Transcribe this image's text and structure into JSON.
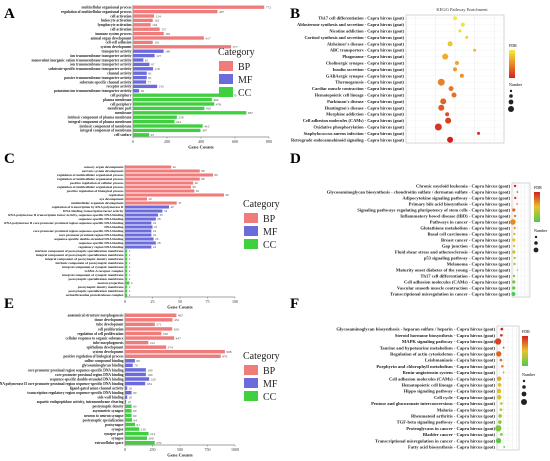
{
  "category_legend": {
    "title": "Category",
    "entries": [
      {
        "label": "BP",
        "color": "#f07b7b"
      },
      {
        "label": "MF",
        "color": "#6b6bdb"
      },
      {
        "label": "CC",
        "color": "#3fcf3f"
      }
    ]
  },
  "kegg_legends": {
    "b": {
      "title": "KEGG Pathway Enrichment",
      "color_title": "FDR",
      "size_title": "Number"
    },
    "d": {
      "color_title": "FDR",
      "size_title": "Number"
    },
    "f": {
      "color_title": "FDR",
      "size_title": "Number"
    }
  },
  "chart_data": [
    {
      "panel": "A",
      "type": "bar",
      "orientation": "horizontal",
      "xlabel": "Gene Counts",
      "xlim": [
        0,
        800
      ],
      "xticks": [
        0,
        200,
        400,
        600,
        800
      ],
      "bars": [
        {
          "label": "multicellular organismal process",
          "value": 772,
          "category": "BP"
        },
        {
          "label": "regulation of multicellular organismal process",
          "value": 497,
          "category": "BP"
        },
        {
          "label": "cell activation",
          "value": 124,
          "category": "BP"
        },
        {
          "label": "leukocyte activation",
          "value": 116,
          "category": "BP"
        },
        {
          "label": "lymphocyte activation",
          "value": 104,
          "category": "BP"
        },
        {
          "label": "cell activation",
          "value": 157,
          "category": "BP"
        },
        {
          "label": "immune system process",
          "value": 181,
          "category": "BP"
        },
        {
          "label": "animal organ development",
          "value": 417,
          "category": "BP"
        },
        {
          "label": "cell-cell adhesion",
          "value": 116,
          "category": "BP"
        },
        {
          "label": "system development",
          "value": 577,
          "category": "BP"
        },
        {
          "label": "transporter activity",
          "value": 180,
          "category": "MF"
        },
        {
          "label": "ion transmembrane transporter activity",
          "value": 127,
          "category": "MF"
        },
        {
          "label": "monovalent inorganic cation transmembrane transporter activity",
          "value": 61,
          "category": "MF"
        },
        {
          "label": "ion transmembrane transporter activity",
          "value": 97,
          "category": "MF"
        },
        {
          "label": "substrate-specific transmembrane transporter activity",
          "value": 118,
          "category": "MF"
        },
        {
          "label": "channel activity",
          "value": 81,
          "category": "MF"
        },
        {
          "label": "passive transmembrane transporter activity",
          "value": 81,
          "category": "MF"
        },
        {
          "label": "substrate-specific channel activity",
          "value": 77,
          "category": "MF"
        },
        {
          "label": "receptor activity",
          "value": 142,
          "category": "MF"
        },
        {
          "label": "potassium ion transmembrane transporter activity",
          "value": 36,
          "category": "MF"
        },
        {
          "label": "cell periphery",
          "value": 570,
          "category": "CC"
        },
        {
          "label": "plasma membrane",
          "value": 464,
          "category": "CC"
        },
        {
          "label": "cell periphery",
          "value": 478,
          "category": "CC"
        },
        {
          "label": "membrane part",
          "value": 420,
          "category": "CC"
        },
        {
          "label": "membrane",
          "value": 667,
          "category": "CC"
        },
        {
          "label": "intrinsic component of plasma membrane",
          "value": 258,
          "category": "CC"
        },
        {
          "label": "integral component of plasma membrane",
          "value": 244,
          "category": "CC"
        },
        {
          "label": "intrinsic component of membrane",
          "value": 410,
          "category": "CC"
        },
        {
          "label": "integral component of membrane",
          "value": 397,
          "category": "CC"
        },
        {
          "label": "cell surface",
          "value": 95,
          "category": "CC"
        }
      ]
    },
    {
      "panel": "B",
      "type": "scatter",
      "title": "KEGG Pathway Enrichment",
      "categories": [
        "Th17 cell differentiation - Capra hircus (goat)",
        "Aldosterone synthesis and secretion - Capra hircus (goat)",
        "Nicotine addiction - Capra hircus (goat)",
        "Cortisol synthesis and secretion - Capra hircus (goat)",
        "Alzheimer's disease - Capra hircus (goat)",
        "ABC transporters - Capra hircus (goat)",
        "Phagosome - Capra hircus (goat)",
        "Cholinergic synapse - Capra hircus (goat)",
        "Insulin secretion - Capra hircus (goat)",
        "GABAergic synapse - Capra hircus (goat)",
        "Thermogenesis - Capra hircus (goat)",
        "Cardiac muscle contraction - Capra hircus (goat)",
        "Hematopoietic cell lineage - Capra hircus (goat)",
        "Parkinson's disease - Capra hircus (goat)",
        "Huntington's disease - Capra hircus (goat)",
        "Morphine addiction - Capra hircus (goat)",
        "Cell adhesion molecules (CAMs) - Capra hircus (goat)",
        "Oxidative phosphorylation - Capra hircus (goat)",
        "Staphylococcus aureus infection - Capra hircus (goat)",
        "Retrograde endocannabinoid signaling - Capra hircus (goat)"
      ],
      "x": [
        0.5,
        0.58,
        0.55,
        0.62,
        0.45,
        0.7,
        0.4,
        0.52,
        0.5,
        0.57,
        0.36,
        0.46,
        0.49,
        0.38,
        0.36,
        0.42,
        0.43,
        0.33,
        0.74,
        0.45
      ],
      "sizes": [
        4,
        4,
        3,
        3,
        5,
        3,
        6,
        4,
        4,
        4,
        7,
        5,
        5,
        6,
        6,
        4,
        6,
        7,
        3,
        6
      ]
    },
    {
      "panel": "C",
      "type": "bar",
      "orientation": "horizontal",
      "xlabel": "Gene Counts",
      "xlim": [
        0,
        100
      ],
      "xticks": [
        0,
        25,
        50,
        75,
        100
      ],
      "bars": [
        {
          "label": "sensory organ development",
          "value": 42,
          "category": "BP"
        },
        {
          "label": "nervous system development",
          "value": 68,
          "category": "BP"
        },
        {
          "label": "regulation of multicellular organismal process",
          "value": 80,
          "category": "BP"
        },
        {
          "label": "regulation of multicellular organismal process",
          "value": 68,
          "category": "BP"
        },
        {
          "label": "positive regulation of cellular process",
          "value": 62,
          "category": "BP"
        },
        {
          "label": "regulation of multicellular organismal process",
          "value": 60,
          "category": "BP"
        },
        {
          "label": "positive regulation of biological process",
          "value": 63,
          "category": "BP"
        },
        {
          "label": "regulation",
          "value": 90,
          "category": "BP"
        },
        {
          "label": "eye development",
          "value": 20,
          "category": "BP"
        },
        {
          "label": "multicellular organism development",
          "value": 47,
          "category": "BP"
        },
        {
          "label": "regulation of transcription by RNA polymerase II",
          "value": 40,
          "category": "MF"
        },
        {
          "label": "DNA-binding transcription factor activity",
          "value": 34,
          "category": "MF"
        },
        {
          "label": "RNA polymerase II transcription factor activity, sequence-specific DNA binding",
          "value": 30,
          "category": "MF"
        },
        {
          "label": "sequence-specific DNA binding",
          "value": 28,
          "category": "MF"
        },
        {
          "label": "RNA polymerase II core promoter proximal region sequence-specific DNA binding",
          "value": 24,
          "category": "MF"
        },
        {
          "label": "DNA binding",
          "value": 25,
          "category": "MF"
        },
        {
          "label": "core promoter proximal region sequence-specific DNA binding",
          "value": 24,
          "category": "MF"
        },
        {
          "label": "core promoter proximal region DNA binding",
          "value": 24,
          "category": "MF"
        },
        {
          "label": "sequence-specific double-stranded DNA binding",
          "value": 26,
          "category": "MF"
        },
        {
          "label": "sequence-specific DNA binding",
          "value": 28,
          "category": "MF"
        },
        {
          "label": "regulatory region DNA binding",
          "value": 24,
          "category": "MF"
        },
        {
          "label": "intrinsic component of postsynaptic specialization membrane",
          "value": 2,
          "category": "CC"
        },
        {
          "label": "integral component of postsynaptic specialization membrane",
          "value": 2,
          "category": "CC"
        },
        {
          "label": "integral component of postsynaptic density membrane",
          "value": 2,
          "category": "CC"
        },
        {
          "label": "intrinsic component of postsynaptic membrane",
          "value": 2,
          "category": "CC"
        },
        {
          "label": "integral component of synaptic membrane",
          "value": 2,
          "category": "CC"
        },
        {
          "label": "GABA-A receptor complex",
          "value": 2,
          "category": "CC"
        },
        {
          "label": "integral component of synaptic membrane",
          "value": 2,
          "category": "CC"
        },
        {
          "label": "postsynaptic specialization membrane",
          "value": 2,
          "category": "CC"
        },
        {
          "label": "neuron projection",
          "value": 4,
          "category": "CC"
        },
        {
          "label": "postsynaptic density membrane",
          "value": 2,
          "category": "CC"
        },
        {
          "label": "postsynaptic specialization membrane",
          "value": 2,
          "category": "CC"
        },
        {
          "label": "serine/threonine protein kinase complex",
          "value": 2,
          "category": "CC"
        }
      ]
    },
    {
      "panel": "D",
      "type": "scatter",
      "categories": [
        "Chronic myeloid leukemia - Capra hircus (goat)",
        "Glycosaminoglycan biosynthesis - chondroitin sulfate / dermatan sulfate - Capra hircus (goat)",
        "Adipocytokine signaling pathway - Capra hircus (goat)",
        "Primary bile acid biosynthesis - Capra hircus (goat)",
        "Signaling pathways regulating pluripotency of stem cells - Capra hircus (goat)",
        "Inflammatory bowel disease (IBD) - Capra hircus (goat)",
        "Pathways in cancer - Capra hircus (goat)",
        "Glutathione metabolism - Capra hircus (goat)",
        "Basal cell carcinoma - Capra hircus (goat)",
        "Breast cancer - Capra hircus (goat)",
        "Gap junction - Capra hircus (goat)",
        "Fluid shear stress and atherosclerosis - Capra hircus (goat)",
        "p53 signaling pathway - Capra hircus (goat)",
        "Melanoma - Capra hircus (goat)",
        "Maturity onset diabetes of the young - Capra hircus (goat)",
        "Th17 cell differentiation - Capra hircus (goat)",
        "Cell adhesion molecules (CAMs) - Capra hircus (goat)",
        "Vascular smooth muscle contraction - Capra hircus (goat)",
        "Transcriptional misregulation in cancer - Capra hircus (goat)"
      ],
      "x": [
        0.17,
        0.3,
        0.18,
        0.28,
        0.1,
        0.17,
        0.05,
        0.15,
        0.13,
        0.1,
        0.12,
        0.1,
        0.15,
        0.14,
        0.3,
        0.11,
        0.1,
        0.1,
        0.08
      ],
      "sizes": [
        3,
        2,
        3,
        2,
        4,
        3,
        7,
        3,
        3,
        4,
        3,
        4,
        3,
        3,
        2,
        3,
        4,
        4,
        5
      ]
    },
    {
      "panel": "E",
      "type": "bar",
      "orientation": "horizontal",
      "xlabel": "Gene Counts",
      "xlim": [
        0,
        1000
      ],
      "xticks": [
        0,
        250,
        500,
        750,
        1000
      ],
      "bars": [
        {
          "label": "anatomical structure morphogenesis",
          "value": 467,
          "category": "BP"
        },
        {
          "label": "tissue development",
          "value": 432,
          "category": "BP"
        },
        {
          "label": "tube development",
          "value": 271,
          "category": "BP"
        },
        {
          "label": "cell proliferation",
          "value": 429,
          "category": "BP"
        },
        {
          "label": "regulation of cell proliferation",
          "value": 330,
          "category": "BP"
        },
        {
          "label": "cellular response to organic substance",
          "value": 447,
          "category": "BP"
        },
        {
          "label": "tube morphogenesis",
          "value": 212,
          "category": "BP"
        },
        {
          "label": "epithelium development",
          "value": 374,
          "category": "BP"
        },
        {
          "label": "system development",
          "value": 908,
          "category": "BP"
        },
        {
          "label": "positive regulation of biological process",
          "value": 870,
          "category": "BP"
        },
        {
          "label": "sulfur compound binding",
          "value": 90,
          "category": "MF"
        },
        {
          "label": "glycosaminoglycan binding",
          "value": 70,
          "category": "MF"
        },
        {
          "label": "core promoter proximal region sequence-specific DNA binding",
          "value": 190,
          "category": "MF"
        },
        {
          "label": "core promoter proximal region DNA binding",
          "value": 190,
          "category": "MF"
        },
        {
          "label": "sequence-specific double-stranded DNA binding",
          "value": 220,
          "category": "MF"
        },
        {
          "label": "RNA polymerase II core promoter proximal region sequence-specific DNA binding",
          "value": 184,
          "category": "MF"
        },
        {
          "label": "ligand-gated anion channel activity",
          "value": 20,
          "category": "MF"
        },
        {
          "label": "transcription regulatory region sequence-specific DNA binding",
          "value": 60,
          "category": "MF"
        },
        {
          "label": "side wall binding",
          "value": 20,
          "category": "MF"
        },
        {
          "label": "aspartic endopeptidase activity, intramembrane cleaving",
          "value": 10,
          "category": "MF"
        },
        {
          "label": "postsynaptic density",
          "value": 60,
          "category": "CC"
        },
        {
          "label": "asymmetric synapse",
          "value": 60,
          "category": "CC"
        },
        {
          "label": "neuron to neuron synapse",
          "value": 60,
          "category": "CC"
        },
        {
          "label": "postsynaptic specialization",
          "value": 64,
          "category": "CC"
        },
        {
          "label": "postsynapse",
          "value": 91,
          "category": "CC"
        },
        {
          "label": "synapse",
          "value": 130,
          "category": "CC"
        },
        {
          "label": "synapse part",
          "value": 214,
          "category": "CC"
        },
        {
          "label": "synapse",
          "value": 200,
          "category": "CC"
        },
        {
          "label": "extracellular space",
          "value": 270,
          "category": "CC"
        }
      ]
    },
    {
      "panel": "F",
      "type": "scatter",
      "categories": [
        "Glycosaminoglycan biosynthesis - heparan sulfate / heparin - Capra hircus (goat)",
        "Steroid hormone biosynthesis - Capra hircus (goat)",
        "MAPK signaling pathway - Capra hircus (goat)",
        "Taurine and hypotaurine metabolism - Capra hircus (goat)",
        "Regulation of actin cytoskeleton - Capra hircus (goat)",
        "Leishmaniasis - Capra hircus (goat)",
        "Porphyrin and chlorophyll metabolism - Capra hircus (goat)",
        "Renin-angiotensin system - Capra hircus (goat)",
        "Cell adhesion molecules (CAMs) - Capra hircus (goat)",
        "Hematopoietic cell lineage - Capra hircus (goat)",
        "Hippo signaling pathway - Capra hircus (goat)",
        "Cell cycle - Capra hircus (goat)",
        "Pentose and glucuronate interconversions - Capra hircus (goat)",
        "Malaria - Capra hircus (goat)",
        "Rheumatoid arthritis - Capra hircus (goat)",
        "TGF-beta signaling pathway - Capra hircus (goat)",
        "Proteoglycans in cancer - Capra hircus (goat)",
        "Bladder cancer - Capra hircus (goat)",
        "Transcriptional misregulation in cancer - Capra hircus (goat)",
        "Fatty acid biosynthesis - Capra hircus (goat)"
      ],
      "x": [
        0.22,
        0.2,
        0.05,
        0.3,
        0.08,
        0.18,
        0.24,
        0.3,
        0.1,
        0.12,
        0.09,
        0.1,
        0.2,
        0.18,
        0.14,
        0.13,
        0.06,
        0.2,
        0.07,
        0.33
      ],
      "sizes": [
        3,
        3,
        7,
        2,
        6,
        3,
        3,
        2,
        5,
        4,
        5,
        5,
        3,
        3,
        4,
        4,
        7,
        3,
        6,
        2
      ]
    }
  ]
}
